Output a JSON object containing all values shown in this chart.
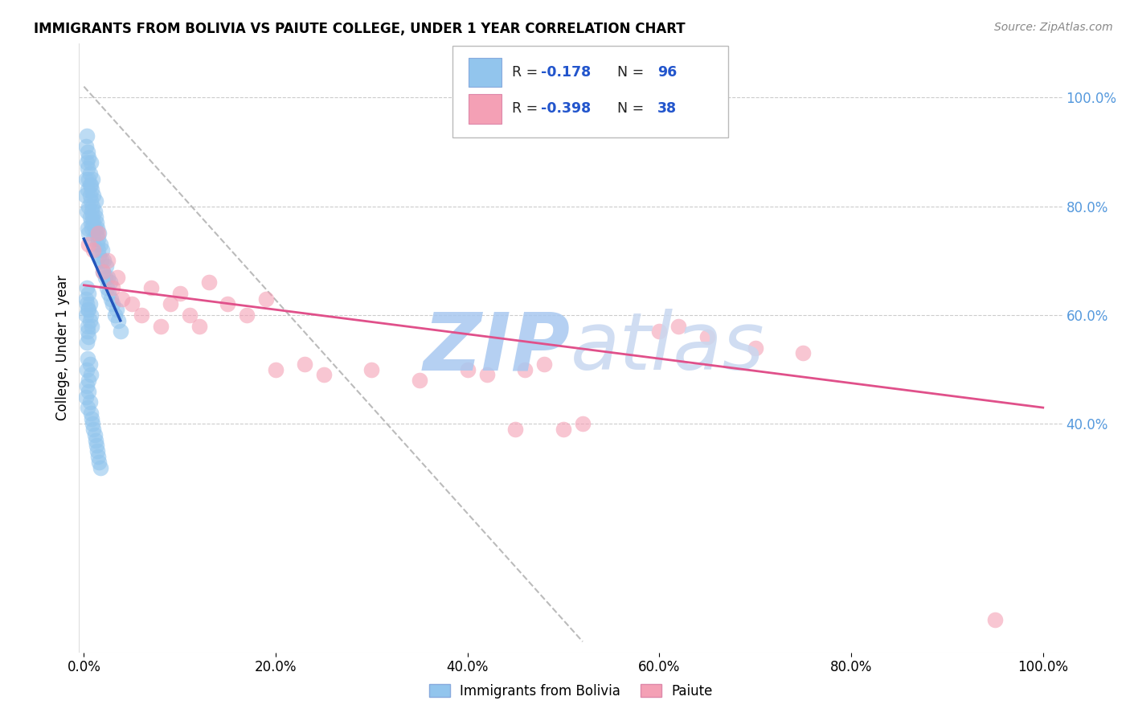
{
  "title": "IMMIGRANTS FROM BOLIVIA VS PAIUTE COLLEGE, UNDER 1 YEAR CORRELATION CHART",
  "source": "Source: ZipAtlas.com",
  "ylabel": "College, Under 1 year",
  "x_tick_labels": [
    "0.0%",
    "20.0%",
    "40.0%",
    "60.0%",
    "80.0%",
    "100.0%"
  ],
  "x_tick_vals": [
    0.0,
    0.2,
    0.4,
    0.6,
    0.8,
    1.0
  ],
  "y_tick_labels_right": [
    "100.0%",
    "80.0%",
    "60.0%",
    "40.0%"
  ],
  "y_tick_vals": [
    1.0,
    0.8,
    0.6,
    0.4
  ],
  "legend_label1": "Immigrants from Bolivia",
  "legend_label2": "Paiute",
  "blue_color": "#92C5ED",
  "pink_color": "#F4A0B5",
  "blue_line_color": "#2255BB",
  "pink_line_color": "#E0508A",
  "gray_dashed_color": "#BBBBBB",
  "background_color": "#FFFFFF",
  "watermark_color": "#D0DFF5",
  "blue_scatter_x": [
    0.001,
    0.002,
    0.002,
    0.003,
    0.003,
    0.003,
    0.004,
    0.004,
    0.004,
    0.004,
    0.005,
    0.005,
    0.005,
    0.005,
    0.006,
    0.006,
    0.006,
    0.006,
    0.007,
    0.007,
    0.007,
    0.007,
    0.008,
    0.008,
    0.008,
    0.009,
    0.009,
    0.009,
    0.01,
    0.01,
    0.01,
    0.011,
    0.011,
    0.012,
    0.012,
    0.013,
    0.013,
    0.014,
    0.014,
    0.015,
    0.015,
    0.016,
    0.016,
    0.017,
    0.018,
    0.019,
    0.02,
    0.021,
    0.022,
    0.023,
    0.024,
    0.025,
    0.026,
    0.027,
    0.028,
    0.03,
    0.032,
    0.034,
    0.036,
    0.038,
    0.002,
    0.003,
    0.004,
    0.005,
    0.006,
    0.003,
    0.004,
    0.005,
    0.002,
    0.003,
    0.004,
    0.005,
    0.006,
    0.007,
    0.008,
    0.003,
    0.004,
    0.005,
    0.006,
    0.007,
    0.002,
    0.003,
    0.004,
    0.005,
    0.006,
    0.007,
    0.008,
    0.009,
    0.01,
    0.011,
    0.012,
    0.013,
    0.014,
    0.015,
    0.016,
    0.017
  ],
  "blue_scatter_y": [
    0.82,
    0.91,
    0.85,
    0.88,
    0.79,
    0.93,
    0.87,
    0.83,
    0.76,
    0.9,
    0.85,
    0.8,
    0.75,
    0.89,
    0.84,
    0.78,
    0.82,
    0.86,
    0.81,
    0.77,
    0.84,
    0.88,
    0.79,
    0.83,
    0.76,
    0.8,
    0.85,
    0.78,
    0.77,
    0.82,
    0.74,
    0.79,
    0.76,
    0.78,
    0.81,
    0.75,
    0.77,
    0.73,
    0.76,
    0.74,
    0.72,
    0.75,
    0.71,
    0.73,
    0.7,
    0.72,
    0.68,
    0.7,
    0.67,
    0.69,
    0.65,
    0.67,
    0.64,
    0.66,
    0.63,
    0.62,
    0.6,
    0.61,
    0.59,
    0.57,
    0.6,
    0.62,
    0.58,
    0.61,
    0.59,
    0.55,
    0.57,
    0.56,
    0.63,
    0.65,
    0.61,
    0.64,
    0.62,
    0.6,
    0.58,
    0.5,
    0.52,
    0.48,
    0.51,
    0.49,
    0.45,
    0.47,
    0.43,
    0.46,
    0.44,
    0.42,
    0.41,
    0.4,
    0.39,
    0.38,
    0.37,
    0.36,
    0.35,
    0.34,
    0.33,
    0.32
  ],
  "pink_scatter_x": [
    0.005,
    0.01,
    0.015,
    0.02,
    0.025,
    0.03,
    0.035,
    0.04,
    0.05,
    0.06,
    0.07,
    0.08,
    0.09,
    0.1,
    0.11,
    0.12,
    0.13,
    0.15,
    0.17,
    0.19,
    0.2,
    0.23,
    0.25,
    0.3,
    0.35,
    0.4,
    0.42,
    0.45,
    0.46,
    0.48,
    0.5,
    0.52,
    0.6,
    0.62,
    0.65,
    0.7,
    0.75,
    0.95
  ],
  "pink_scatter_y": [
    0.73,
    0.72,
    0.75,
    0.68,
    0.7,
    0.65,
    0.67,
    0.63,
    0.62,
    0.6,
    0.65,
    0.58,
    0.62,
    0.64,
    0.6,
    0.58,
    0.66,
    0.62,
    0.6,
    0.63,
    0.5,
    0.51,
    0.49,
    0.5,
    0.48,
    0.5,
    0.49,
    0.39,
    0.5,
    0.51,
    0.39,
    0.4,
    0.57,
    0.58,
    0.56,
    0.54,
    0.53,
    0.04
  ],
  "blue_trend_x": [
    0.0,
    0.038
  ],
  "blue_trend_y": [
    0.74,
    0.59
  ],
  "pink_trend_x": [
    0.0,
    1.0
  ],
  "pink_trend_y": [
    0.655,
    0.43
  ],
  "gray_trend_x": [
    0.0,
    0.52
  ],
  "gray_trend_y": [
    1.02,
    0.0
  ],
  "xlim": [
    -0.005,
    1.02
  ],
  "ylim": [
    -0.02,
    1.1
  ]
}
